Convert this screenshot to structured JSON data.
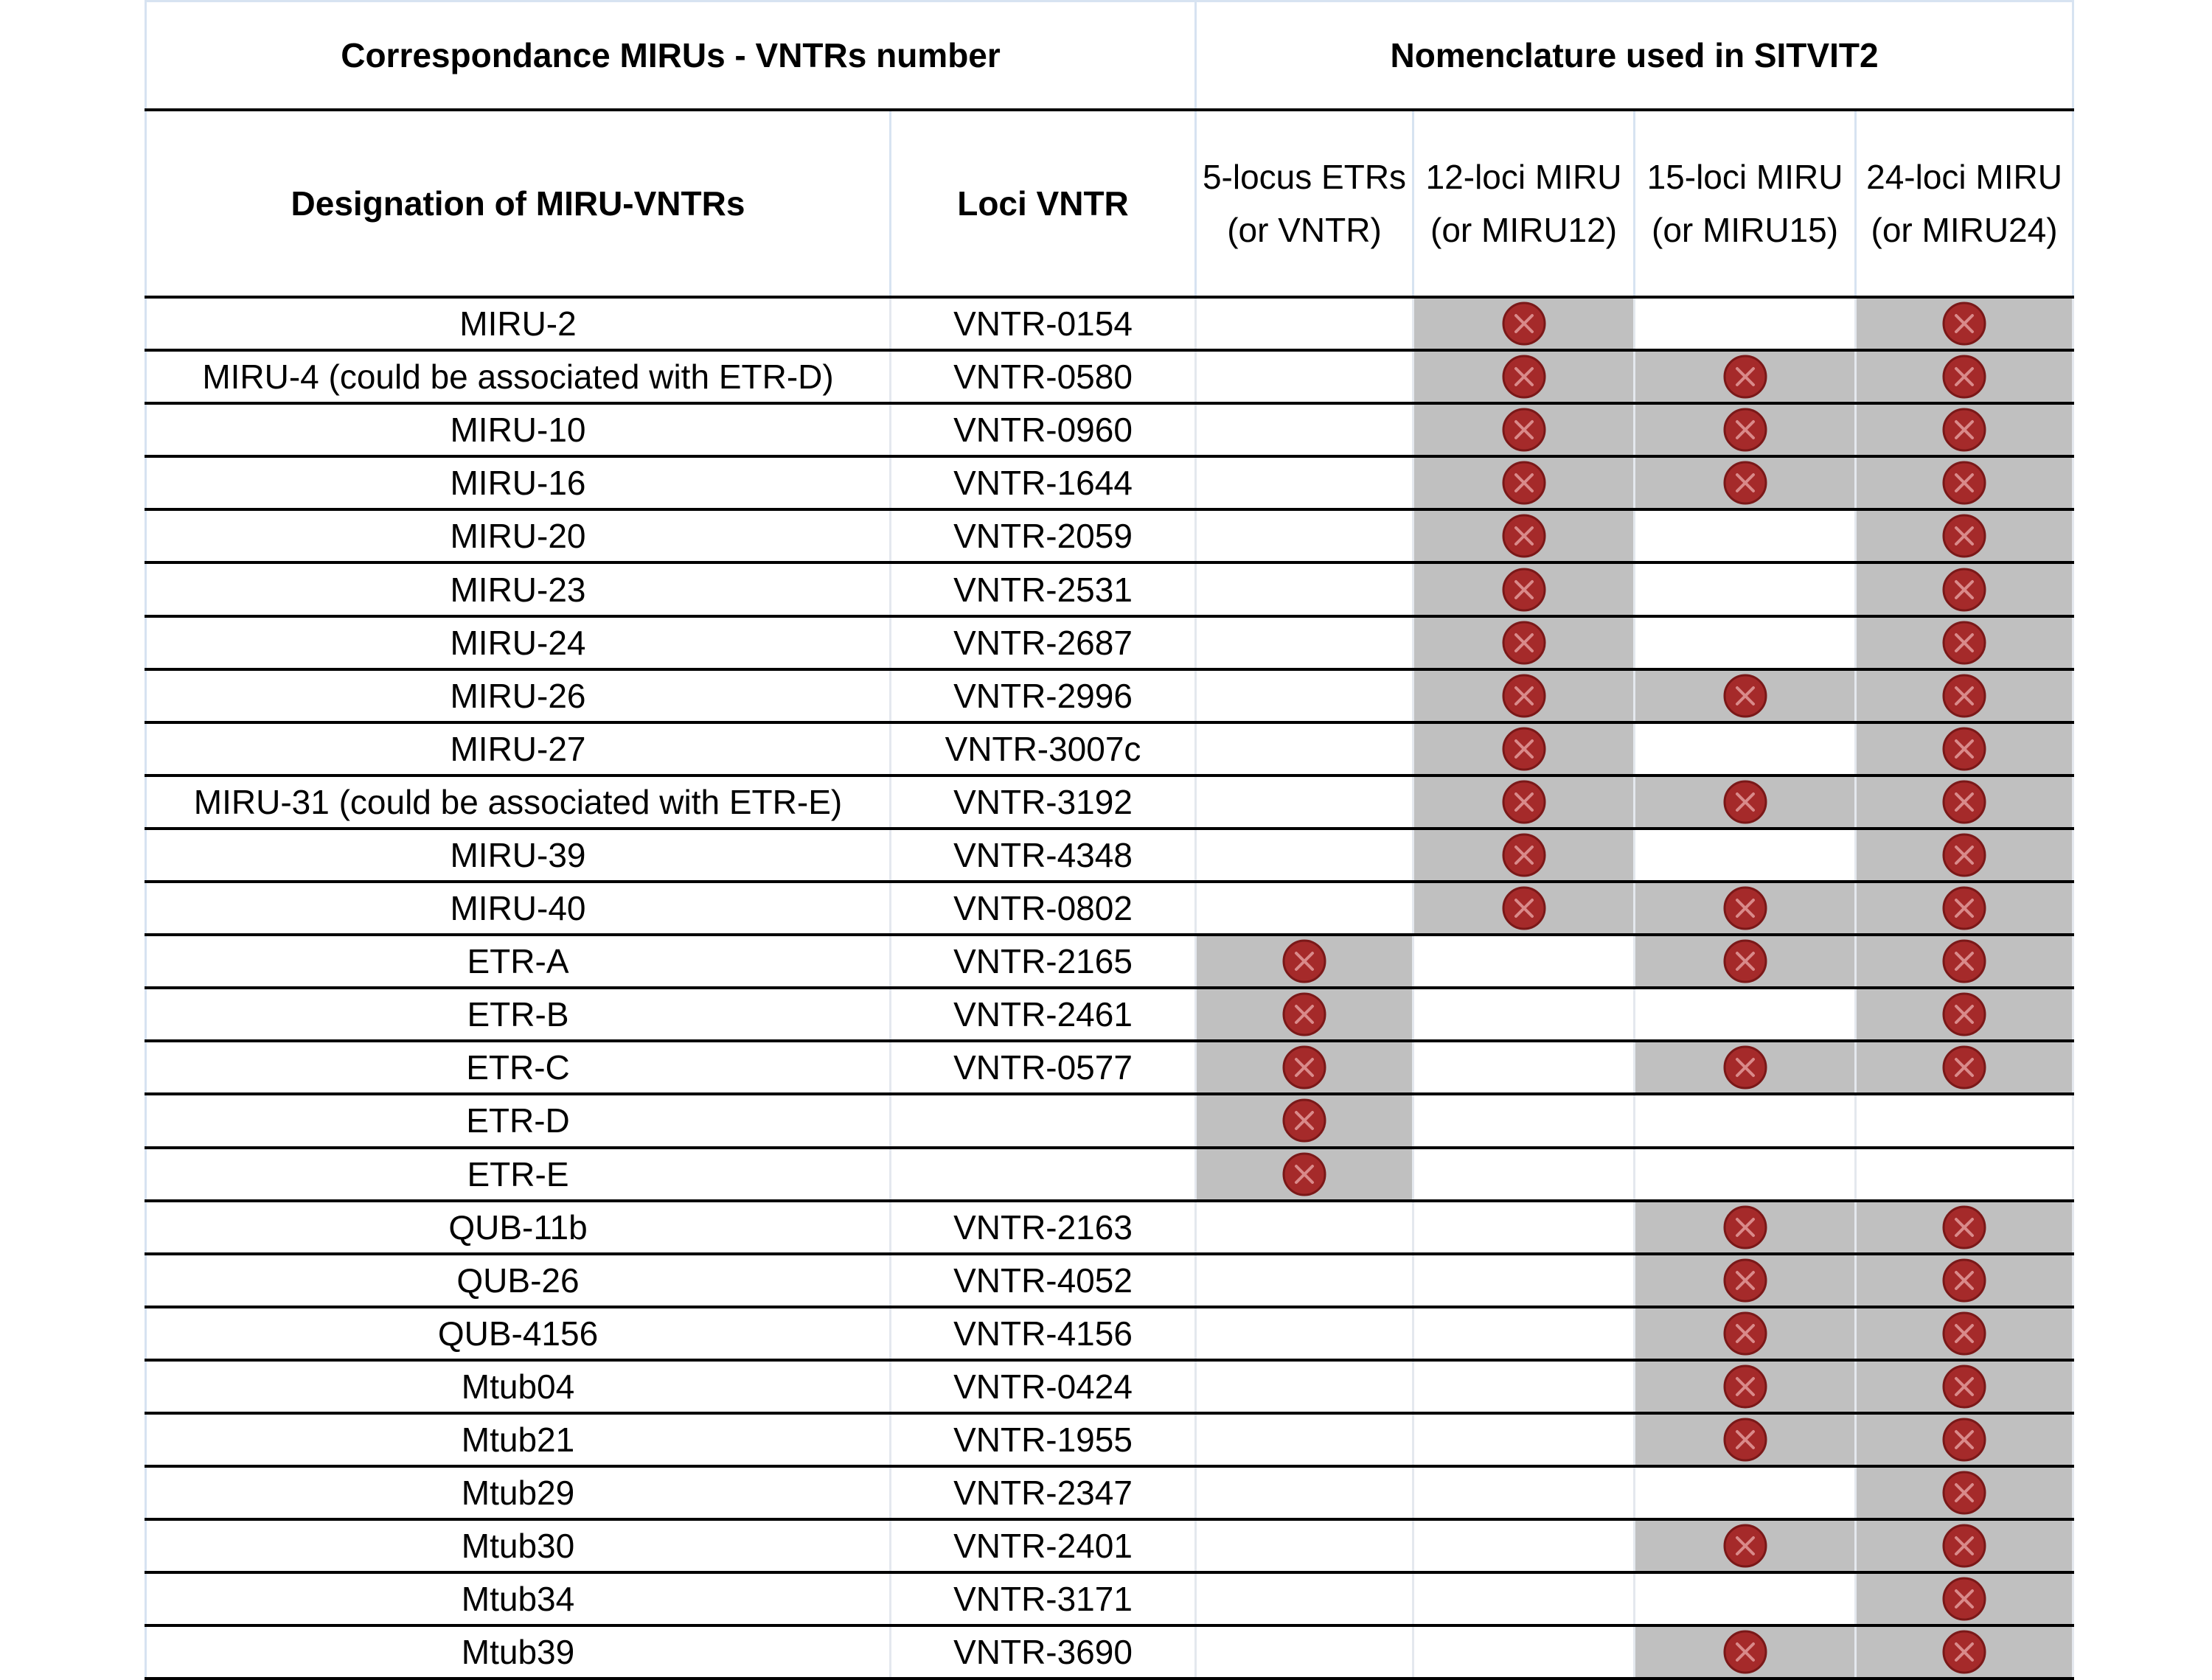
{
  "headers": {
    "group1": "Correspondance MIRUs - VNTRs number",
    "group2": "Nomenclature used in SITVIT2",
    "col_designation": "Designation of MIRU-VNTRs",
    "col_loci": "Loci VNTR",
    "col5_l1": "5-locus ETRs",
    "col5_l2": "(or VNTR)",
    "col12_l1": "12-loci MIRU",
    "col12_l2": "(or MIRU12)",
    "col15_l1": "15-loci MIRU",
    "col15_l2": "(or MIRU15)",
    "col24_l1": "24-loci MIRU",
    "col24_l2": "(or MIRU24)"
  },
  "colors": {
    "shade": "#c0c0c0",
    "mark_fill": "#a52a2a",
    "mark_stroke": "#7a1818"
  },
  "rows": [
    {
      "designation": "MIRU-2",
      "locus": "VNTR-0154",
      "in": [
        0,
        1,
        0,
        1
      ]
    },
    {
      "designation": "MIRU-4 (could be associated with ETR-D)",
      "locus": "VNTR-0580",
      "in": [
        0,
        1,
        1,
        1
      ]
    },
    {
      "designation": "MIRU-10",
      "locus": "VNTR-0960",
      "in": [
        0,
        1,
        1,
        1
      ]
    },
    {
      "designation": "MIRU-16",
      "locus": "VNTR-1644",
      "in": [
        0,
        1,
        1,
        1
      ]
    },
    {
      "designation": "MIRU-20",
      "locus": "VNTR-2059",
      "in": [
        0,
        1,
        0,
        1
      ]
    },
    {
      "designation": "MIRU-23",
      "locus": "VNTR-2531",
      "in": [
        0,
        1,
        0,
        1
      ]
    },
    {
      "designation": "MIRU-24",
      "locus": "VNTR-2687",
      "in": [
        0,
        1,
        0,
        1
      ]
    },
    {
      "designation": "MIRU-26",
      "locus": "VNTR-2996",
      "in": [
        0,
        1,
        1,
        1
      ]
    },
    {
      "designation": "MIRU-27",
      "locus": "VNTR-3007c",
      "in": [
        0,
        1,
        0,
        1
      ]
    },
    {
      "designation": "MIRU-31 (could be associated with ETR-E)",
      "locus": "VNTR-3192",
      "in": [
        0,
        1,
        1,
        1
      ]
    },
    {
      "designation": "MIRU-39",
      "locus": "VNTR-4348",
      "in": [
        0,
        1,
        0,
        1
      ]
    },
    {
      "designation": "MIRU-40",
      "locus": "VNTR-0802",
      "in": [
        0,
        1,
        1,
        1
      ]
    },
    {
      "designation": "ETR-A",
      "locus": "VNTR-2165",
      "in": [
        1,
        0,
        1,
        1
      ]
    },
    {
      "designation": "ETR-B",
      "locus": "VNTR-2461",
      "in": [
        1,
        0,
        0,
        1
      ]
    },
    {
      "designation": "ETR-C",
      "locus": "VNTR-0577",
      "in": [
        1,
        0,
        1,
        1
      ]
    },
    {
      "designation": "ETR-D",
      "locus": "",
      "in": [
        1,
        0,
        0,
        0
      ]
    },
    {
      "designation": "ETR-E",
      "locus": "",
      "in": [
        1,
        0,
        0,
        0
      ]
    },
    {
      "designation": "QUB-11b",
      "locus": "VNTR-2163",
      "in": [
        0,
        0,
        1,
        1
      ]
    },
    {
      "designation": "QUB-26",
      "locus": "VNTR-4052",
      "in": [
        0,
        0,
        1,
        1
      ]
    },
    {
      "designation": "QUB-4156",
      "locus": "VNTR-4156",
      "in": [
        0,
        0,
        1,
        1
      ]
    },
    {
      "designation": "Mtub04",
      "locus": "VNTR-0424",
      "in": [
        0,
        0,
        1,
        1
      ]
    },
    {
      "designation": "Mtub21",
      "locus": "VNTR-1955",
      "in": [
        0,
        0,
        1,
        1
      ]
    },
    {
      "designation": "Mtub29",
      "locus": "VNTR-2347",
      "in": [
        0,
        0,
        0,
        1
      ]
    },
    {
      "designation": "Mtub30",
      "locus": "VNTR-2401",
      "in": [
        0,
        0,
        1,
        1
      ]
    },
    {
      "designation": "Mtub34",
      "locus": "VNTR-3171",
      "in": [
        0,
        0,
        0,
        1
      ]
    },
    {
      "designation": "Mtub39",
      "locus": "VNTR-3690",
      "in": [
        0,
        0,
        1,
        1
      ]
    }
  ]
}
